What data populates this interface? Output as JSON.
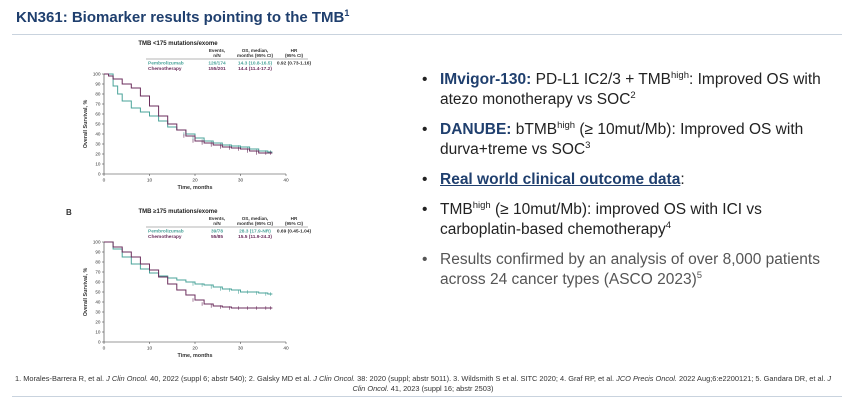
{
  "slide": {
    "title": "KN361: Biomarker results pointing to the TMB",
    "title_sup": "1",
    "panel_b_label": "B"
  },
  "colors": {
    "pembrolizumab": "#4aa39a",
    "chemotherapy": "#6b2d5c",
    "heading": "#1f3f6e"
  },
  "bullets": [
    {
      "bold": "IMvigor-130:",
      "text1": " PD-L1 IC2/3 + TMB",
      "sup1": "high",
      "text2": ": Improved OS with atezo monotherapy vs SOC",
      "sup2": "2"
    },
    {
      "bold": "DANUBE:",
      "text1": " bTMB",
      "sup1": "high",
      "text2": " (≥ 10mut/Mb): Improved OS with durva+treme vs SOC",
      "sup2": "3"
    },
    {
      "bold": "Real world clinical outcome data",
      "text2": ":"
    },
    {
      "text1": "TMB",
      "sup1": "high",
      "text2": " (≥ 10mut/Mb): improved OS with ICI vs carboplatin-based chemotherapy",
      "sup2": "4"
    },
    {
      "text2": "Results confirmed by an analysis of over 8,000 patients across 24 cancer types (ASCO 2023)",
      "sup2": "5"
    }
  ],
  "footnote": {
    "part1": "1. Morales-Barrera R, et al. ",
    "j1": "J Clin Oncol.",
    "part2": " 40, 2022 (suppl 6; abstr 540); 2. Galsky MD et al. ",
    "j2": "J Clin Oncol.",
    "part3": " 38: 2020 (suppl; abstr 5011). 3. Wildsmith S et al. SITC 2020; 4. Graf RP, et al. ",
    "j4": "JCO Precis Oncol.",
    "part4": " 2022 Aug;6:e2200121; 5. Gandara DR, et al. ",
    "j5": "J Clin Oncol.",
    "part5": " 41, 2023 (suppl 16; abstr 2503)"
  },
  "chart_data": [
    {
      "type": "line",
      "title": "TMB <175 mutations/exome",
      "xlabel": "Time, months",
      "ylabel": "Overall Survival, %",
      "xlim": [
        0,
        40
      ],
      "ylim": [
        0,
        100
      ],
      "xticks": [
        0,
        10,
        20,
        30,
        40
      ],
      "yticks": [
        0,
        10,
        20,
        30,
        40,
        50,
        60,
        70,
        80,
        90,
        100
      ],
      "table_headers": [
        "Events, n/N",
        "OS, median, months (95% CI)",
        "HR (95% CI)"
      ],
      "table_rows": [
        {
          "label": "Pembrolizumab",
          "events": "126/174",
          "os": "14.3 (10.8-16.5)",
          "hr": "0.92 (0.73-1.16)"
        },
        {
          "label": "Chemotherapy",
          "events": "155/201",
          "os": "14.4 (11.4-17.2)",
          "hr": ""
        }
      ],
      "series": [
        {
          "name": "Pembrolizumab",
          "x": [
            0,
            2,
            3,
            4,
            6,
            8,
            10,
            12,
            14,
            16,
            18,
            20,
            22,
            24,
            26,
            28,
            30,
            32,
            34,
            36,
            37
          ],
          "y": [
            100,
            88,
            80,
            73,
            66,
            62,
            58,
            53,
            47,
            44,
            40,
            36,
            33,
            31,
            29,
            28,
            27,
            25,
            23,
            22,
            22
          ]
        },
        {
          "name": "Chemotherapy",
          "x": [
            0,
            1,
            2,
            4,
            6,
            8,
            10,
            12,
            14,
            16,
            18,
            20,
            22,
            24,
            26,
            28,
            30,
            32,
            34,
            36,
            37
          ],
          "y": [
            100,
            98,
            95,
            90,
            86,
            78,
            68,
            58,
            50,
            44,
            38,
            33,
            31,
            29,
            27,
            26,
            25,
            23,
            21,
            21,
            21
          ]
        }
      ]
    },
    {
      "type": "line",
      "title": "TMB ≥175 mutations/exome",
      "xlabel": "Time, months",
      "ylabel": "Overall Survival, %",
      "xlim": [
        0,
        40
      ],
      "ylim": [
        0,
        100
      ],
      "xticks": [
        0,
        10,
        20,
        30,
        40
      ],
      "yticks": [
        0,
        10,
        20,
        30,
        40,
        50,
        60,
        70,
        80,
        90,
        100
      ],
      "table_headers": [
        "Events, n/N",
        "OS, median, months (95% CI)",
        "HR (95% CI)"
      ],
      "table_rows": [
        {
          "label": "Pembrolizumab",
          "events": "39/78",
          "os": "28.3 (17.9-NR)",
          "hr": "0.69 (0.45-1.04)"
        },
        {
          "label": "Chemotherapy",
          "events": "55/85",
          "os": "15.5 (11.9-24.3)",
          "hr": ""
        }
      ],
      "series": [
        {
          "name": "Pembrolizumab",
          "x": [
            0,
            2,
            4,
            6,
            8,
            10,
            12,
            14,
            16,
            18,
            20,
            22,
            24,
            26,
            28,
            30,
            32,
            34,
            36,
            37
          ],
          "y": [
            100,
            93,
            85,
            78,
            73,
            69,
            66,
            64,
            62,
            60,
            58,
            57,
            55,
            53,
            52,
            50,
            50,
            49,
            48,
            48
          ]
        },
        {
          "name": "Chemotherapy",
          "x": [
            0,
            2,
            4,
            6,
            8,
            10,
            12,
            14,
            16,
            18,
            20,
            22,
            24,
            26,
            28,
            30,
            32,
            34,
            36,
            37
          ],
          "y": [
            100,
            95,
            90,
            85,
            78,
            72,
            65,
            58,
            52,
            47,
            42,
            38,
            36,
            35,
            34,
            34,
            34,
            34,
            34,
            34
          ]
        }
      ]
    }
  ]
}
